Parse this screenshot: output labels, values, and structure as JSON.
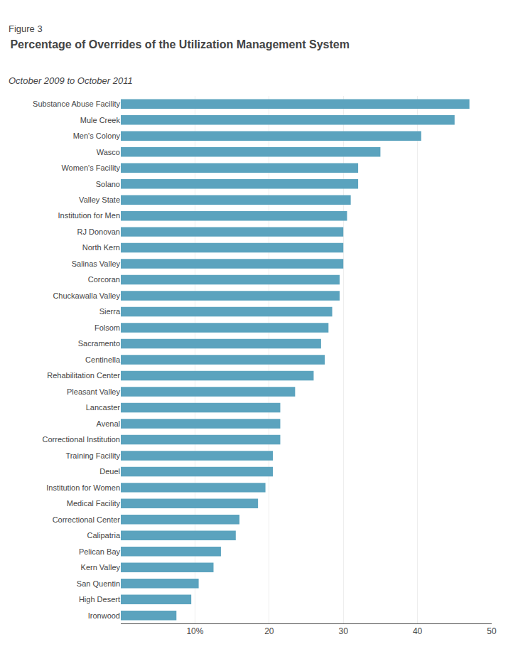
{
  "chart_data": {
    "type": "bar",
    "orientation": "horizontal",
    "title": "Percentage of Overrides of the Utilization Management System",
    "subtitle": "October 2009 to October 2011",
    "annotations": [
      "Figure 3"
    ],
    "categories": [
      "Ironwood",
      "High Desert",
      "San Quentin",
      "Kern Valley",
      "Pelican Bay",
      "Calipatria",
      "Correctional Center",
      "Medical Facility",
      "Institution for Women",
      "Deuel",
      "Training Facility",
      "Correctional Institution",
      "Avenal",
      "Lancaster",
      "Pleasant Valley",
      "Rehabilitation Center",
      "Centinella",
      "Sacramento",
      "Folsom",
      "Sierra",
      "Chuckawalla Valley",
      "Corcoran",
      "Salinas Valley",
      "North Kern",
      "RJ Donovan",
      "Institution for Men",
      "Valley State",
      "Solano",
      "Women's Facility",
      "Wasco",
      "Men's Colony",
      "Mule Creek",
      "Substance Abuse Facility"
    ],
    "values": [
      7.5,
      9.5,
      10.5,
      12.5,
      13.5,
      15.5,
      16.0,
      18.5,
      19.5,
      20.5,
      20.5,
      21.5,
      21.5,
      21.5,
      23.5,
      26.0,
      27.5,
      27.0,
      28.0,
      28.5,
      29.5,
      29.5,
      30.0,
      30.0,
      30.0,
      30.5,
      31.0,
      32.0,
      32.0,
      35.0,
      40.5,
      45.0,
      47.0
    ],
    "color": "#5ba3be",
    "xlim": [
      0,
      50
    ],
    "xticks": [
      {
        "value": 10,
        "label": "10%"
      },
      20,
      30,
      40,
      50
    ],
    "grid": true
  }
}
